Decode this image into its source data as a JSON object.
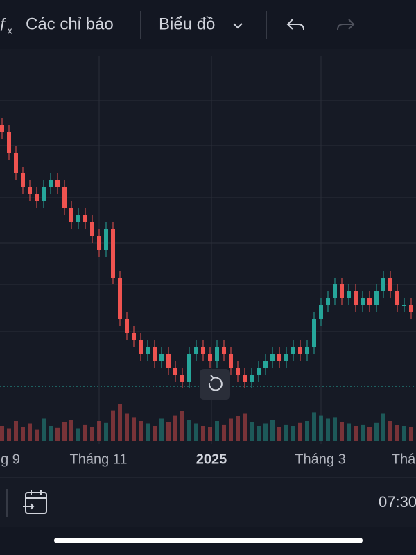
{
  "toolbar": {
    "indicators": "Các chỉ báo",
    "chart_type": "Biểu đồ"
  },
  "chart_data": {
    "type": "candlestick",
    "open": [
      52,
      51,
      48,
      45,
      43,
      42,
      41,
      43,
      44,
      43,
      40,
      38,
      39,
      38,
      36,
      34,
      37,
      30,
      24,
      22,
      21,
      19,
      20,
      18,
      19,
      17,
      16,
      15,
      19,
      20,
      19,
      18,
      20,
      19,
      17,
      16,
      15,
      16,
      17,
      18,
      19,
      18,
      19,
      20,
      19,
      20,
      24,
      26,
      27,
      29,
      27,
      28,
      26,
      27,
      26,
      28,
      30,
      28,
      26,
      26
    ],
    "high": [
      53,
      52,
      49,
      46,
      44,
      43,
      44,
      45,
      45,
      44,
      41,
      40,
      40,
      39,
      37,
      38,
      38,
      31,
      25,
      23,
      22,
      21,
      21,
      20,
      20,
      18,
      17,
      20,
      21,
      21,
      20,
      21,
      21,
      20,
      18,
      17,
      17,
      18,
      19,
      20,
      20,
      20,
      21,
      21,
      21,
      25,
      27,
      28,
      30,
      30,
      29,
      29,
      28,
      28,
      29,
      31,
      31,
      29,
      27,
      27
    ],
    "low": [
      50,
      47,
      44,
      42,
      41,
      40,
      40,
      42,
      42,
      39,
      37,
      37,
      37,
      35,
      33,
      33,
      29,
      23,
      21,
      20,
      18,
      18,
      17,
      17,
      16,
      15,
      14,
      14,
      18,
      18,
      17,
      17,
      18,
      16,
      15,
      14,
      14,
      15,
      16,
      17,
      17,
      17,
      18,
      18,
      18,
      19,
      23,
      25,
      26,
      26,
      26,
      25,
      25,
      25,
      25,
      27,
      27,
      25,
      25,
      24
    ],
    "close": [
      51,
      48,
      45,
      43,
      42,
      41,
      43,
      44,
      43,
      40,
      38,
      39,
      38,
      36,
      34,
      37,
      30,
      24,
      22,
      21,
      19,
      20,
      18,
      19,
      17,
      16,
      15,
      19,
      20,
      19,
      18,
      20,
      19,
      17,
      16,
      15,
      16,
      17,
      18,
      19,
      18,
      19,
      20,
      19,
      20,
      24,
      26,
      27,
      29,
      27,
      28,
      26,
      27,
      26,
      28,
      30,
      28,
      26,
      26,
      25
    ],
    "volume": [
      30,
      25,
      40,
      28,
      35,
      22,
      45,
      30,
      26,
      38,
      42,
      25,
      33,
      28,
      40,
      36,
      62,
      75,
      55,
      48,
      40,
      35,
      30,
      45,
      38,
      52,
      60,
      42,
      35,
      30,
      28,
      40,
      33,
      45,
      50,
      55,
      38,
      30,
      35,
      42,
      28,
      33,
      30,
      36,
      40,
      58,
      52,
      45,
      48,
      38,
      35,
      30,
      33,
      28,
      36,
      55,
      40,
      32,
      30,
      28
    ],
    "ylim": [
      10,
      62
    ],
    "volume_lim": [
      0,
      100
    ],
    "up_color": "#26a69a",
    "down_color": "#ef5350",
    "x_labels": [
      "g 9",
      "Tháng 11",
      "2025",
      "Tháng 3",
      "Thá"
    ]
  },
  "footer": {
    "time": "07:30"
  }
}
